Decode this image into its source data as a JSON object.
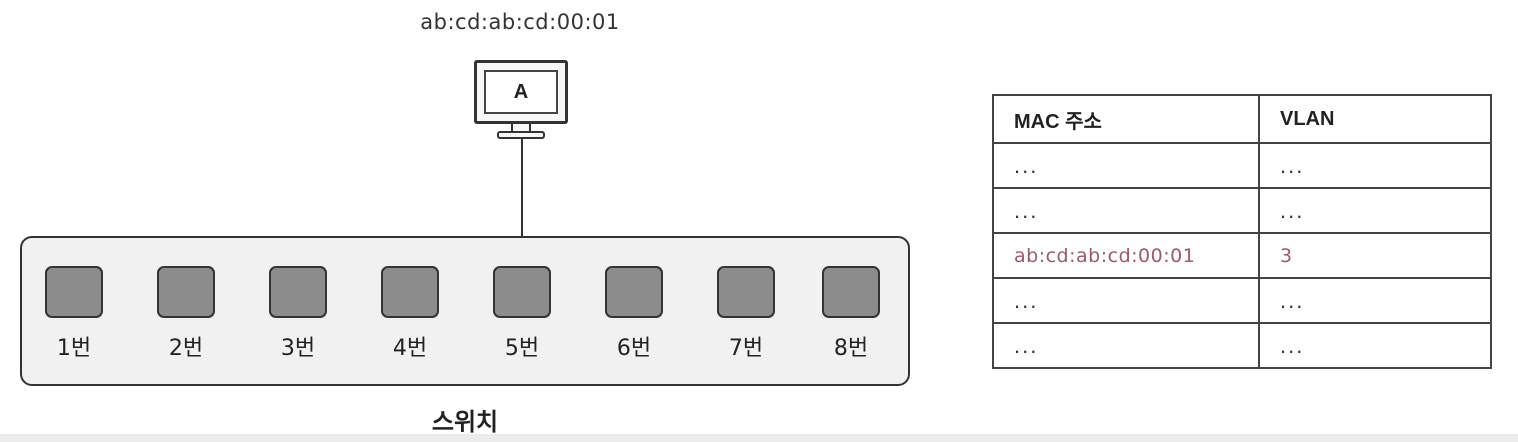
{
  "host": {
    "mac_address": "ab:cd:ab:cd:00:01",
    "label": "A"
  },
  "switch": {
    "label": "스위치",
    "ports": [
      "1번",
      "2번",
      "3번",
      "4번",
      "5번",
      "6번",
      "7번",
      "8번"
    ],
    "connected_port": "5번"
  },
  "mac_table": {
    "headers": [
      "MAC 주소",
      "VLAN"
    ],
    "rows": [
      [
        "...",
        "..."
      ],
      [
        "...",
        "..."
      ],
      [
        "ab:cd:ab:cd:00:01",
        "3"
      ],
      [
        "...",
        "..."
      ],
      [
        "...",
        "..."
      ]
    ],
    "highlight_row": 2,
    "highlight_color": "#9a5a6e"
  }
}
